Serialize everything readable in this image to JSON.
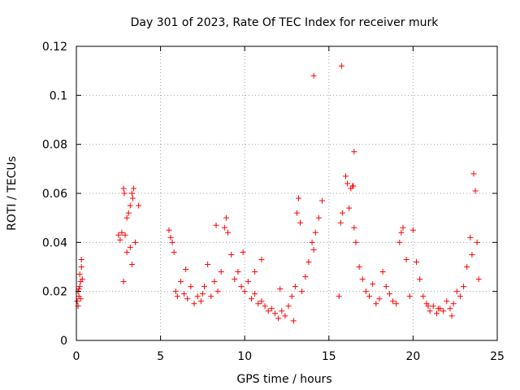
{
  "chart_data": {
    "type": "scatter",
    "title": "Day 301 of 2023, Rate Of TEC Index for receiver murk",
    "xlabel": "GPS time / hours",
    "ylabel": "ROTI / TECUs",
    "xlim": [
      0,
      25
    ],
    "ylim": [
      0,
      0.12
    ],
    "xticks": [
      0,
      5,
      10,
      15,
      20,
      25
    ],
    "yticks": [
      0,
      0.02,
      0.04,
      0.06,
      0.08,
      0.1,
      0.12
    ],
    "xtick_labels": [
      "0",
      "5",
      "10",
      "15",
      "20",
      "25"
    ],
    "ytick_labels": [
      "0",
      "0.02",
      "0.04",
      "0.06",
      "0.08",
      "0.1",
      "0.12"
    ],
    "grid": true,
    "marker": "+",
    "marker_color": "#ff0000",
    "series": [
      {
        "x": [
          0.05,
          0.1,
          0.15,
          0.2,
          0.25,
          0.3,
          0.35,
          0.1,
          0.2,
          0.3,
          0.25,
          0.15,
          2.5,
          2.6,
          2.7,
          2.8,
          2.85,
          2.9,
          3.0,
          3.1,
          3.2,
          3.3,
          3.35,
          3.4,
          3.5,
          3.7,
          2.8,
          3.0,
          3.2,
          3.3,
          5.5,
          5.6,
          5.7,
          5.8,
          5.9,
          6.0,
          6.2,
          6.4,
          6.6,
          6.8,
          7.0,
          7.2,
          7.4,
          7.6,
          7.8,
          8.0,
          8.2,
          8.4,
          8.6,
          8.8,
          8.9,
          9.0,
          9.2,
          9.4,
          9.6,
          9.8,
          10.0,
          10.2,
          10.4,
          10.6,
          10.8,
          11.0,
          11.2,
          11.4,
          11.6,
          11.8,
          12.0,
          12.2,
          12.4,
          12.6,
          12.8,
          13.0,
          13.1,
          13.2,
          13.3,
          13.4,
          13.6,
          13.8,
          14.0,
          14.1,
          14.2,
          14.4,
          14.6,
          15.6,
          15.7,
          15.8,
          16.0,
          16.2,
          16.3,
          16.4,
          16.5,
          16.6,
          16.8,
          17.0,
          17.2,
          17.4,
          17.6,
          17.8,
          18.0,
          18.2,
          18.4,
          18.6,
          18.8,
          19.0,
          19.2,
          19.4,
          19.6,
          19.8,
          20.0,
          20.2,
          20.4,
          20.6,
          20.8,
          21.0,
          21.2,
          21.4,
          21.6,
          21.8,
          22.0,
          22.2,
          22.4,
          22.6,
          22.8,
          23.0,
          23.2,
          23.4,
          23.5,
          23.6,
          23.7,
          23.8,
          23.9,
          14.1,
          15.75,
          16.5,
          16.1,
          16.45,
          11.0,
          12.1,
          21.5,
          20.9,
          22.3,
          8.3,
          9.9,
          10.6,
          12.9,
          19.3,
          6.5,
          7.5
        ],
        "y": [
          0.016,
          0.02,
          0.018,
          0.027,
          0.024,
          0.033,
          0.025,
          0.014,
          0.022,
          0.03,
          0.017,
          0.021,
          0.043,
          0.041,
          0.044,
          0.062,
          0.06,
          0.043,
          0.05,
          0.052,
          0.055,
          0.06,
          0.058,
          0.062,
          0.04,
          0.055,
          0.024,
          0.036,
          0.038,
          0.031,
          0.045,
          0.042,
          0.04,
          0.036,
          0.02,
          0.018,
          0.024,
          0.019,
          0.017,
          0.022,
          0.015,
          0.018,
          0.016,
          0.022,
          0.031,
          0.018,
          0.024,
          0.02,
          0.028,
          0.046,
          0.05,
          0.044,
          0.035,
          0.025,
          0.028,
          0.022,
          0.02,
          0.024,
          0.017,
          0.019,
          0.015,
          0.016,
          0.014,
          0.012,
          0.013,
          0.011,
          0.009,
          0.012,
          0.01,
          0.014,
          0.018,
          0.022,
          0.052,
          0.058,
          0.048,
          0.02,
          0.026,
          0.032,
          0.04,
          0.037,
          0.044,
          0.05,
          0.057,
          0.018,
          0.048,
          0.052,
          0.067,
          0.054,
          0.062,
          0.063,
          0.046,
          0.04,
          0.03,
          0.025,
          0.02,
          0.018,
          0.023,
          0.015,
          0.017,
          0.028,
          0.022,
          0.019,
          0.016,
          0.015,
          0.04,
          0.046,
          0.033,
          0.018,
          0.045,
          0.032,
          0.025,
          0.018,
          0.015,
          0.012,
          0.014,
          0.011,
          0.013,
          0.012,
          0.016,
          0.013,
          0.015,
          0.02,
          0.018,
          0.022,
          0.03,
          0.042,
          0.035,
          0.068,
          0.061,
          0.04,
          0.025,
          0.108,
          0.112,
          0.077,
          0.064,
          0.063,
          0.033,
          0.021,
          0.013,
          0.014,
          0.01,
          0.047,
          0.036,
          0.028,
          0.008,
          0.044,
          0.029,
          0.019
        ]
      }
    ]
  }
}
